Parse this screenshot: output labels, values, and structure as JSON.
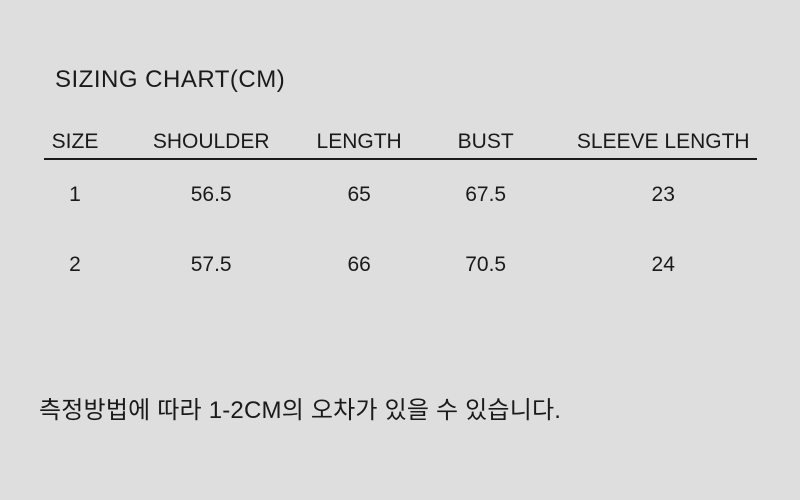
{
  "page": {
    "background_color": "#dedede",
    "text_color": "#1a1a1a",
    "rule_color": "#1a1a1a"
  },
  "title": "SIZING CHART(CM)",
  "table": {
    "columns": [
      "SIZE",
      "SHOULDER",
      "LENGTH",
      "BUST",
      "SLEEVE LENGTH"
    ],
    "rows": [
      [
        "1",
        "56.5",
        "65",
        "67.5",
        "23"
      ],
      [
        "2",
        "57.5",
        "66",
        "70.5",
        "24"
      ]
    ]
  },
  "note": "측정방법에 따라 1-2CM의 오차가 있을 수 있습니다."
}
